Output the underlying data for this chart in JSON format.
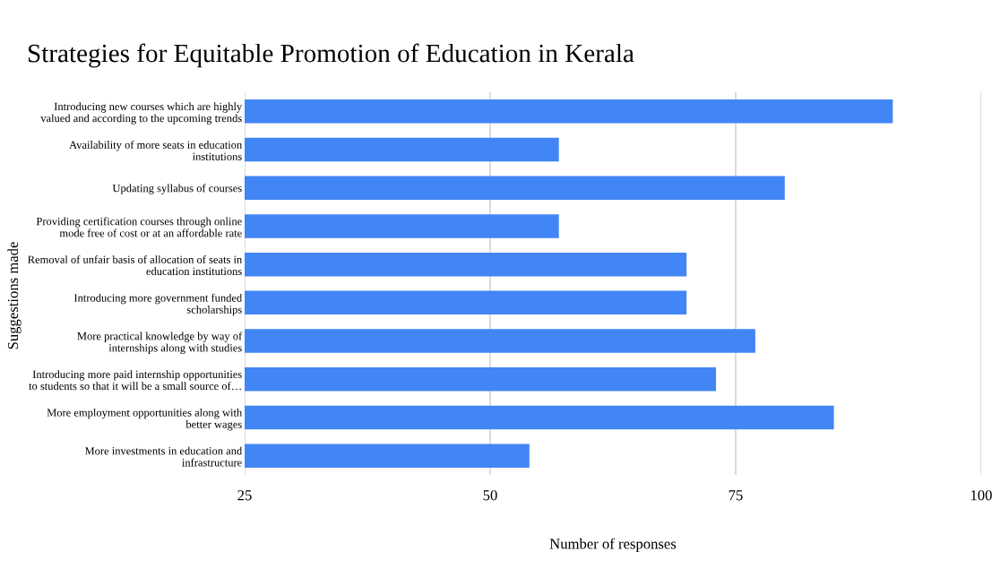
{
  "chart_data": {
    "type": "bar",
    "orientation": "horizontal",
    "title": "Strategies for Equitable Promotion of Education in Kerala",
    "xlabel": "Number of responses",
    "ylabel": "Suggestions made",
    "categories": [
      "Introducing new courses which are highly\nvalued and according to the upcoming trends",
      "Availability of more seats in education\ninstitutions",
      "Updating syllabus of courses",
      "Providing certification courses through online\nmode free of cost or at an affordable rate",
      "Removal of unfair basis of allocation of seats in\neducation institutions",
      "Introducing more government funded\nscholarships",
      "More practical knowledge by way of\ninternships along with studies",
      "Introducing more paid internship opportunities\nto students so that it will be a small source of…",
      "More employment opportunities along with\nbetter wages",
      "More investments in education and\ninfrastructure"
    ],
    "values": [
      91,
      57,
      80,
      57,
      70,
      70,
      77,
      73,
      85,
      54
    ],
    "color": "#4285f4",
    "xlim": [
      25,
      100
    ],
    "xticks": [
      25,
      50,
      75,
      100
    ],
    "grid": "x",
    "legend": false
  }
}
